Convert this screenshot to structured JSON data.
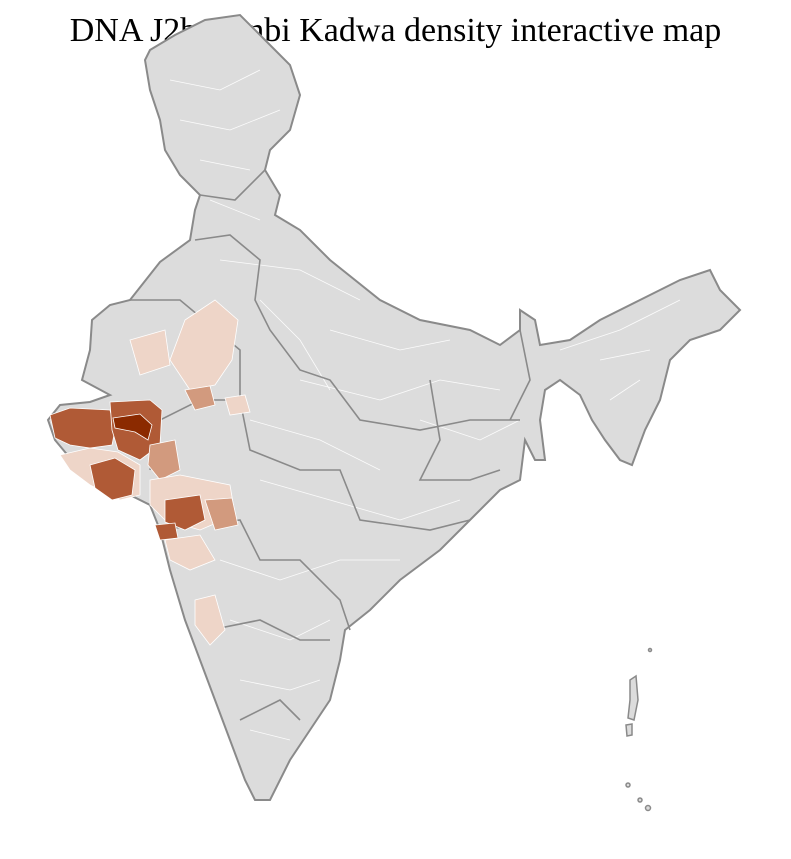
{
  "title": "DNA J2b Kunbi Kadwa density interactive map",
  "colors": {
    "no_data": "#dcdcdc",
    "state_border": "#8a8a8a",
    "district_border": "#ffffff",
    "density_very_high": "#8b2a00",
    "density_high": "#b05a36",
    "density_medium": "#d29a7e",
    "density_low": "#eed5c8"
  }
}
